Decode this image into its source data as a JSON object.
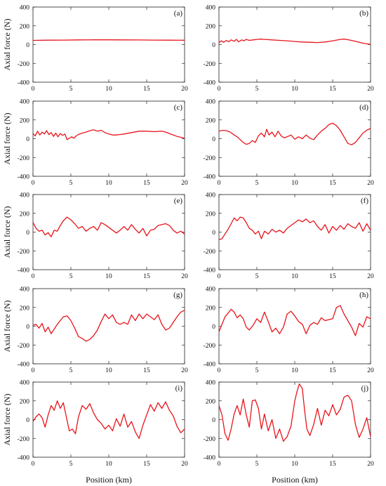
{
  "figure": {
    "line_color": "#e8141b",
    "x_axis_label": "Position (km)",
    "y_axis_label": "Axial force (N)"
  },
  "chart_data": [
    {
      "type": "line",
      "panel": "(a)",
      "xlim": [
        0,
        20
      ],
      "ylim": [
        -400,
        400
      ],
      "x_ticks": [
        0,
        5,
        10,
        15,
        20
      ],
      "y_ticks": [
        -400,
        -200,
        0,
        200,
        400
      ],
      "x": [
        0,
        2,
        4,
        6,
        8,
        10,
        12,
        14,
        16,
        18,
        20
      ],
      "values": [
        45,
        47,
        48,
        50,
        51,
        51,
        50,
        49,
        48,
        47,
        46
      ]
    },
    {
      "type": "line",
      "panel": "(b)",
      "xlim": [
        0,
        20
      ],
      "ylim": [
        -400,
        400
      ],
      "x_ticks": [
        0,
        5,
        10,
        15,
        20
      ],
      "y_ticks": [
        -400,
        -200,
        0,
        200,
        400
      ],
      "x": [
        0,
        0.3,
        0.6,
        1,
        1.3,
        1.6,
        2,
        2.3,
        2.6,
        3,
        3.3,
        3.6,
        4,
        4.5,
        5,
        5.5,
        6,
        7,
        8,
        9,
        10,
        11,
        12,
        13,
        14,
        15,
        16,
        16.5,
        17,
        18,
        19,
        20
      ],
      "values": [
        20,
        40,
        25,
        45,
        30,
        50,
        35,
        55,
        30,
        50,
        40,
        55,
        45,
        50,
        55,
        58,
        55,
        50,
        45,
        40,
        33,
        28,
        25,
        22,
        28,
        40,
        55,
        58,
        52,
        35,
        15,
        3
      ]
    },
    {
      "type": "line",
      "panel": "(c)",
      "xlim": [
        0,
        20
      ],
      "ylim": [
        -400,
        400
      ],
      "x_ticks": [
        0,
        5,
        10,
        15,
        20
      ],
      "y_ticks": [
        -400,
        -200,
        0,
        200,
        400
      ],
      "x": [
        0,
        0.3,
        0.6,
        0.9,
        1.2,
        1.5,
        1.8,
        2.1,
        2.4,
        2.7,
        3,
        3.3,
        3.6,
        3.9,
        4.2,
        4.5,
        4.8,
        5.1,
        5.4,
        5.7,
        6,
        6.5,
        7,
        7.5,
        8,
        8.5,
        9,
        9.5,
        10,
        10.5,
        11,
        11.5,
        12,
        13,
        14,
        15,
        16,
        17,
        17.5,
        18,
        19,
        20
      ],
      "values": [
        55,
        30,
        80,
        40,
        70,
        50,
        85,
        45,
        65,
        25,
        60,
        20,
        55,
        35,
        50,
        -10,
        5,
        20,
        5,
        30,
        45,
        60,
        70,
        85,
        95,
        80,
        90,
        65,
        50,
        40,
        40,
        45,
        50,
        65,
        80,
        80,
        75,
        80,
        70,
        55,
        25,
        5
      ]
    },
    {
      "type": "line",
      "panel": "(d)",
      "xlim": [
        0,
        20
      ],
      "ylim": [
        -400,
        400
      ],
      "x_ticks": [
        0,
        5,
        10,
        15,
        20
      ],
      "y_ticks": [
        -400,
        -200,
        0,
        200,
        400
      ],
      "x": [
        0,
        0.5,
        1,
        1.5,
        2,
        2.4,
        2.8,
        3.2,
        3.6,
        4,
        4.4,
        4.8,
        5.2,
        5.6,
        6,
        6.3,
        6.6,
        7,
        7.4,
        7.8,
        8.2,
        8.6,
        9,
        9.5,
        10,
        10.5,
        11,
        11.5,
        12,
        12.5,
        13,
        13.5,
        14,
        14.5,
        15,
        15.5,
        16,
        16.5,
        17,
        17.5,
        18,
        18.5,
        19,
        19.5,
        20
      ],
      "values": [
        80,
        90,
        85,
        70,
        40,
        20,
        -10,
        -40,
        -60,
        -50,
        -20,
        -40,
        30,
        60,
        20,
        100,
        40,
        70,
        20,
        80,
        30,
        10,
        20,
        40,
        -5,
        20,
        0,
        40,
        5,
        -10,
        40,
        80,
        110,
        150,
        165,
        140,
        90,
        20,
        -50,
        -65,
        -40,
        10,
        60,
        90,
        110
      ]
    },
    {
      "type": "line",
      "panel": "(e)",
      "xlim": [
        0,
        20
      ],
      "ylim": [
        -400,
        400
      ],
      "x_ticks": [
        0,
        5,
        10,
        15,
        20
      ],
      "y_ticks": [
        -400,
        -200,
        0,
        200,
        400
      ],
      "x": [
        0,
        0.4,
        0.8,
        1.2,
        1.6,
        2,
        2.4,
        2.8,
        3.2,
        3.6,
        4,
        4.5,
        5,
        5.5,
        6,
        6.5,
        7,
        7.5,
        8,
        8.5,
        9,
        9.5,
        10,
        10.5,
        11,
        11.5,
        12,
        12.5,
        13,
        13.5,
        14,
        14.5,
        15,
        15.5,
        16,
        16.5,
        17,
        17.5,
        18,
        18.5,
        19,
        19.5,
        20
      ],
      "values": [
        105,
        40,
        10,
        20,
        -30,
        -5,
        -50,
        20,
        10,
        70,
        120,
        160,
        130,
        90,
        40,
        60,
        10,
        40,
        60,
        20,
        100,
        80,
        50,
        20,
        -10,
        20,
        60,
        20,
        80,
        30,
        -10,
        40,
        -40,
        20,
        30,
        70,
        80,
        90,
        70,
        20,
        -10,
        10,
        -20
      ]
    },
    {
      "type": "line",
      "panel": "(f)",
      "xlim": [
        0,
        20
      ],
      "ylim": [
        -400,
        400
      ],
      "x_ticks": [
        0,
        5,
        10,
        15,
        20
      ],
      "y_ticks": [
        -400,
        -200,
        0,
        200,
        400
      ],
      "x": [
        0,
        0.4,
        0.8,
        1.2,
        1.6,
        2,
        2.4,
        2.8,
        3.2,
        3.6,
        4,
        4.4,
        4.8,
        5.2,
        5.6,
        6,
        6.5,
        7,
        7.5,
        8,
        8.5,
        9,
        9.5,
        10,
        10.5,
        11,
        11.5,
        12,
        12.5,
        13,
        13.5,
        14,
        14.5,
        15,
        15.5,
        16,
        16.5,
        17,
        17.5,
        18,
        18.5,
        19,
        19.5,
        20
      ],
      "values": [
        -80,
        -70,
        -20,
        30,
        90,
        150,
        120,
        160,
        150,
        100,
        40,
        20,
        -20,
        10,
        -70,
        10,
        -20,
        30,
        0,
        20,
        -10,
        40,
        70,
        100,
        130,
        110,
        140,
        100,
        120,
        60,
        20,
        80,
        -10,
        60,
        20,
        70,
        30,
        90,
        60,
        40,
        100,
        10,
        90,
        20
      ]
    },
    {
      "type": "line",
      "panel": "(g)",
      "xlim": [
        0,
        20
      ],
      "ylim": [
        -400,
        400
      ],
      "x_ticks": [
        0,
        5,
        10,
        15,
        20
      ],
      "y_ticks": [
        -400,
        -200,
        0,
        200,
        400
      ],
      "x": [
        0,
        0.4,
        0.8,
        1.2,
        1.6,
        2,
        2.4,
        2.8,
        3.2,
        3.6,
        4,
        4.5,
        5,
        5.5,
        6,
        6.5,
        7,
        7.5,
        8,
        8.5,
        9,
        9.5,
        10,
        10.5,
        11,
        11.5,
        12,
        12.5,
        13,
        13.5,
        14,
        14.5,
        15,
        15.5,
        16,
        16.5,
        17,
        17.5,
        18,
        18.5,
        19,
        19.5,
        20
      ],
      "values": [
        10,
        20,
        -20,
        30,
        -60,
        -10,
        -80,
        -30,
        20,
        60,
        100,
        110,
        60,
        -20,
        -110,
        -130,
        -160,
        -140,
        -100,
        -40,
        50,
        130,
        80,
        120,
        40,
        20,
        40,
        20,
        120,
        60,
        130,
        80,
        130,
        100,
        70,
        120,
        20,
        -40,
        -20,
        40,
        100,
        150,
        170
      ]
    },
    {
      "type": "line",
      "panel": "(h)",
      "xlim": [
        0,
        20
      ],
      "ylim": [
        -400,
        400
      ],
      "x_ticks": [
        0,
        5,
        10,
        15,
        20
      ],
      "y_ticks": [
        -400,
        -200,
        0,
        200,
        400
      ],
      "x": [
        0,
        0.4,
        0.8,
        1.2,
        1.6,
        2,
        2.4,
        2.8,
        3.2,
        3.6,
        4,
        4.5,
        5,
        5.5,
        6,
        6.5,
        7,
        7.5,
        8,
        8.5,
        9,
        9.5,
        10,
        10.5,
        11,
        11.5,
        12,
        12.5,
        13,
        13.5,
        14,
        14.5,
        15,
        15.5,
        16,
        16.5,
        17,
        17.5,
        18,
        18.5,
        19,
        19.5,
        20
      ],
      "values": [
        -60,
        20,
        100,
        140,
        180,
        150,
        90,
        120,
        80,
        -10,
        -40,
        10,
        80,
        40,
        150,
        50,
        -60,
        -20,
        -80,
        -10,
        130,
        160,
        110,
        50,
        20,
        -80,
        10,
        40,
        20,
        90,
        60,
        70,
        80,
        200,
        220,
        130,
        60,
        -10,
        -100,
        30,
        -10,
        100,
        80
      ]
    },
    {
      "type": "line",
      "panel": "(i)",
      "xlim": [
        0,
        20
      ],
      "ylim": [
        -400,
        400
      ],
      "x_ticks": [
        0,
        5,
        10,
        15,
        20
      ],
      "y_ticks": [
        -400,
        -200,
        0,
        200,
        400
      ],
      "x": [
        0,
        0.4,
        0.8,
        1.2,
        1.6,
        2,
        2.4,
        2.8,
        3.2,
        3.6,
        4,
        4.4,
        4.8,
        5.2,
        5.6,
        6,
        6.5,
        7,
        7.5,
        8,
        8.5,
        9,
        9.5,
        10,
        10.5,
        11,
        11.5,
        12,
        12.5,
        13,
        13.5,
        14,
        14.5,
        15,
        15.5,
        16,
        16.5,
        17,
        17.5,
        18,
        18.5,
        19,
        19.5,
        20
      ],
      "values": [
        -20,
        30,
        60,
        20,
        -80,
        50,
        150,
        100,
        200,
        120,
        180,
        30,
        -120,
        -100,
        -150,
        30,
        150,
        110,
        170,
        70,
        0,
        -40,
        -100,
        -60,
        -120,
        10,
        -70,
        60,
        -80,
        -20,
        -130,
        -200,
        -60,
        50,
        160,
        90,
        180,
        120,
        190,
        100,
        40,
        -70,
        -140,
        -100
      ]
    },
    {
      "type": "line",
      "panel": "(j)",
      "xlim": [
        0,
        20
      ],
      "ylim": [
        -400,
        400
      ],
      "x_ticks": [
        0,
        5,
        10,
        15,
        20
      ],
      "y_ticks": [
        -400,
        -200,
        0,
        200,
        400
      ],
      "x": [
        0,
        0.4,
        0.8,
        1.2,
        1.6,
        2,
        2.4,
        2.8,
        3.2,
        3.6,
        4,
        4.4,
        4.8,
        5.2,
        5.6,
        6,
        6.5,
        7,
        7.5,
        8,
        8.5,
        9,
        9.5,
        10,
        10.3,
        10.6,
        11,
        11.3,
        11.6,
        12,
        12.5,
        13,
        13.5,
        14,
        14.5,
        15,
        15.5,
        16,
        16.5,
        17,
        17.5,
        18,
        18.5,
        19,
        19.5,
        20
      ],
      "values": [
        150,
        50,
        -150,
        -220,
        -100,
        60,
        150,
        50,
        220,
        50,
        -80,
        200,
        210,
        120,
        -100,
        60,
        -120,
        0,
        -200,
        -100,
        -230,
        -180,
        -70,
        200,
        300,
        380,
        330,
        100,
        -100,
        -170,
        -50,
        120,
        -60,
        100,
        40,
        160,
        50,
        110,
        240,
        260,
        200,
        -50,
        -190,
        -100,
        20,
        -180
      ]
    }
  ]
}
